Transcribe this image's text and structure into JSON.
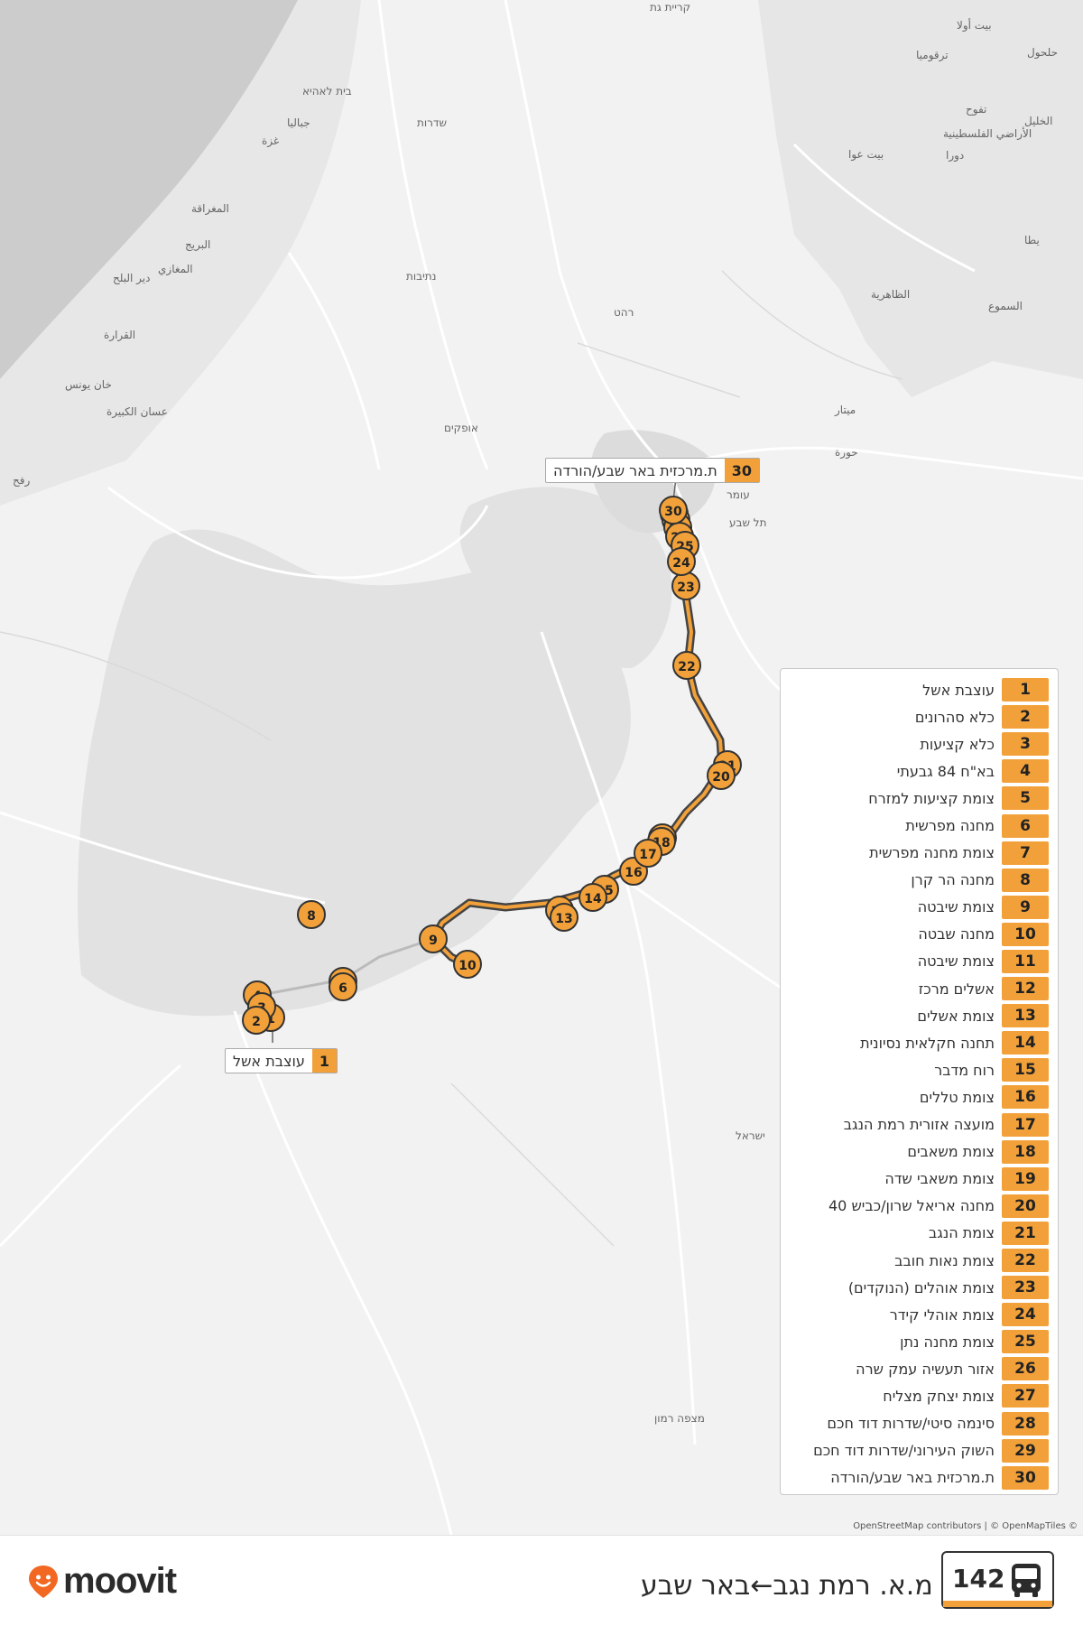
{
  "colors": {
    "accent": "#f2a13a",
    "route_line": "#f2a13a",
    "route_outline": "#444444",
    "water": "#cccccc",
    "park": "#e0e0e0"
  },
  "map_labels": [
    "קריית גת",
    "שדרות",
    "בית לאהיא",
    "נתיבות",
    "רהט",
    "אופקים",
    "עומר",
    "תל שבע",
    "ישראל",
    "מצפה רמון",
    "ميتار",
    "الخليل",
    "دورا",
    "يطا",
    "الظاهرية",
    "السموع",
    "بيت عوا",
    "رفح",
    "غزة",
    "عسان الكبيرة",
    "خان يونس",
    "القرارة",
    "دير البلح",
    "المغازي",
    "البريج",
    "المغراقة",
    "جباليا",
    "الأراضي الفلسطينية",
    "ترقوميا",
    "حلحول",
    "تفوح",
    "بيت أولا",
    "حورة"
  ],
  "route": {
    "number": "142",
    "title": "מ.א. רמת נגב←באר שבע"
  },
  "stops": [
    {
      "num": "1",
      "name": "עוצבת אשל"
    },
    {
      "num": "2",
      "name": "כלא סהרונים"
    },
    {
      "num": "3",
      "name": "כלא קציעות"
    },
    {
      "num": "4",
      "name": "בא\"ח 84 גבעתי"
    },
    {
      "num": "5",
      "name": "צומת קציעות למזרח"
    },
    {
      "num": "6",
      "name": "מחנה מפרשית"
    },
    {
      "num": "7",
      "name": "צומת מחנה מפרשית"
    },
    {
      "num": "8",
      "name": "מחנה הר קרן"
    },
    {
      "num": "9",
      "name": "צומת שיבטה"
    },
    {
      "num": "10",
      "name": "מחנה שבטה"
    },
    {
      "num": "11",
      "name": "צומת שיבטה"
    },
    {
      "num": "12",
      "name": "אשלים מרכז"
    },
    {
      "num": "13",
      "name": "צומת אשלים"
    },
    {
      "num": "14",
      "name": "תחנה חקלאית נסיונית"
    },
    {
      "num": "15",
      "name": "רוח מדבר"
    },
    {
      "num": "16",
      "name": "צומת טללים"
    },
    {
      "num": "17",
      "name": "מועצה אזורית רמת הנגב"
    },
    {
      "num": "18",
      "name": "צומת משאבים"
    },
    {
      "num": "19",
      "name": "צומת משאבי שדה"
    },
    {
      "num": "20",
      "name": "מחנה אריאל שרון/כביש 40"
    },
    {
      "num": "21",
      "name": "צומת הנגב"
    },
    {
      "num": "22",
      "name": "צומת נאות חובב"
    },
    {
      "num": "23",
      "name": "צומת אוהלים (הנוקדים)"
    },
    {
      "num": "24",
      "name": "צומת אוהלי קידר"
    },
    {
      "num": "25",
      "name": "צומת מחנה נתן"
    },
    {
      "num": "26",
      "name": "אזור תעשיה עמק שרה"
    },
    {
      "num": "27",
      "name": "צומת יצחק מצליח"
    },
    {
      "num": "28",
      "name": "סינמה סיטי/שדרות דוד חכם"
    },
    {
      "num": "29",
      "name": "השוק העירוני/שדרות דוד חכם"
    },
    {
      "num": "30",
      "name": "ת.מרכזית באר שבע/הורדה"
    }
  ],
  "callouts": {
    "start": {
      "num": "1",
      "name": "עוצבת אשל"
    },
    "end": {
      "num": "30",
      "name": "ת.מרכזית באר שבע/הורדה"
    }
  },
  "attribution": "OpenStreetMap contributors | © OpenMapTiles ©",
  "logo": {
    "text": "moovit"
  }
}
